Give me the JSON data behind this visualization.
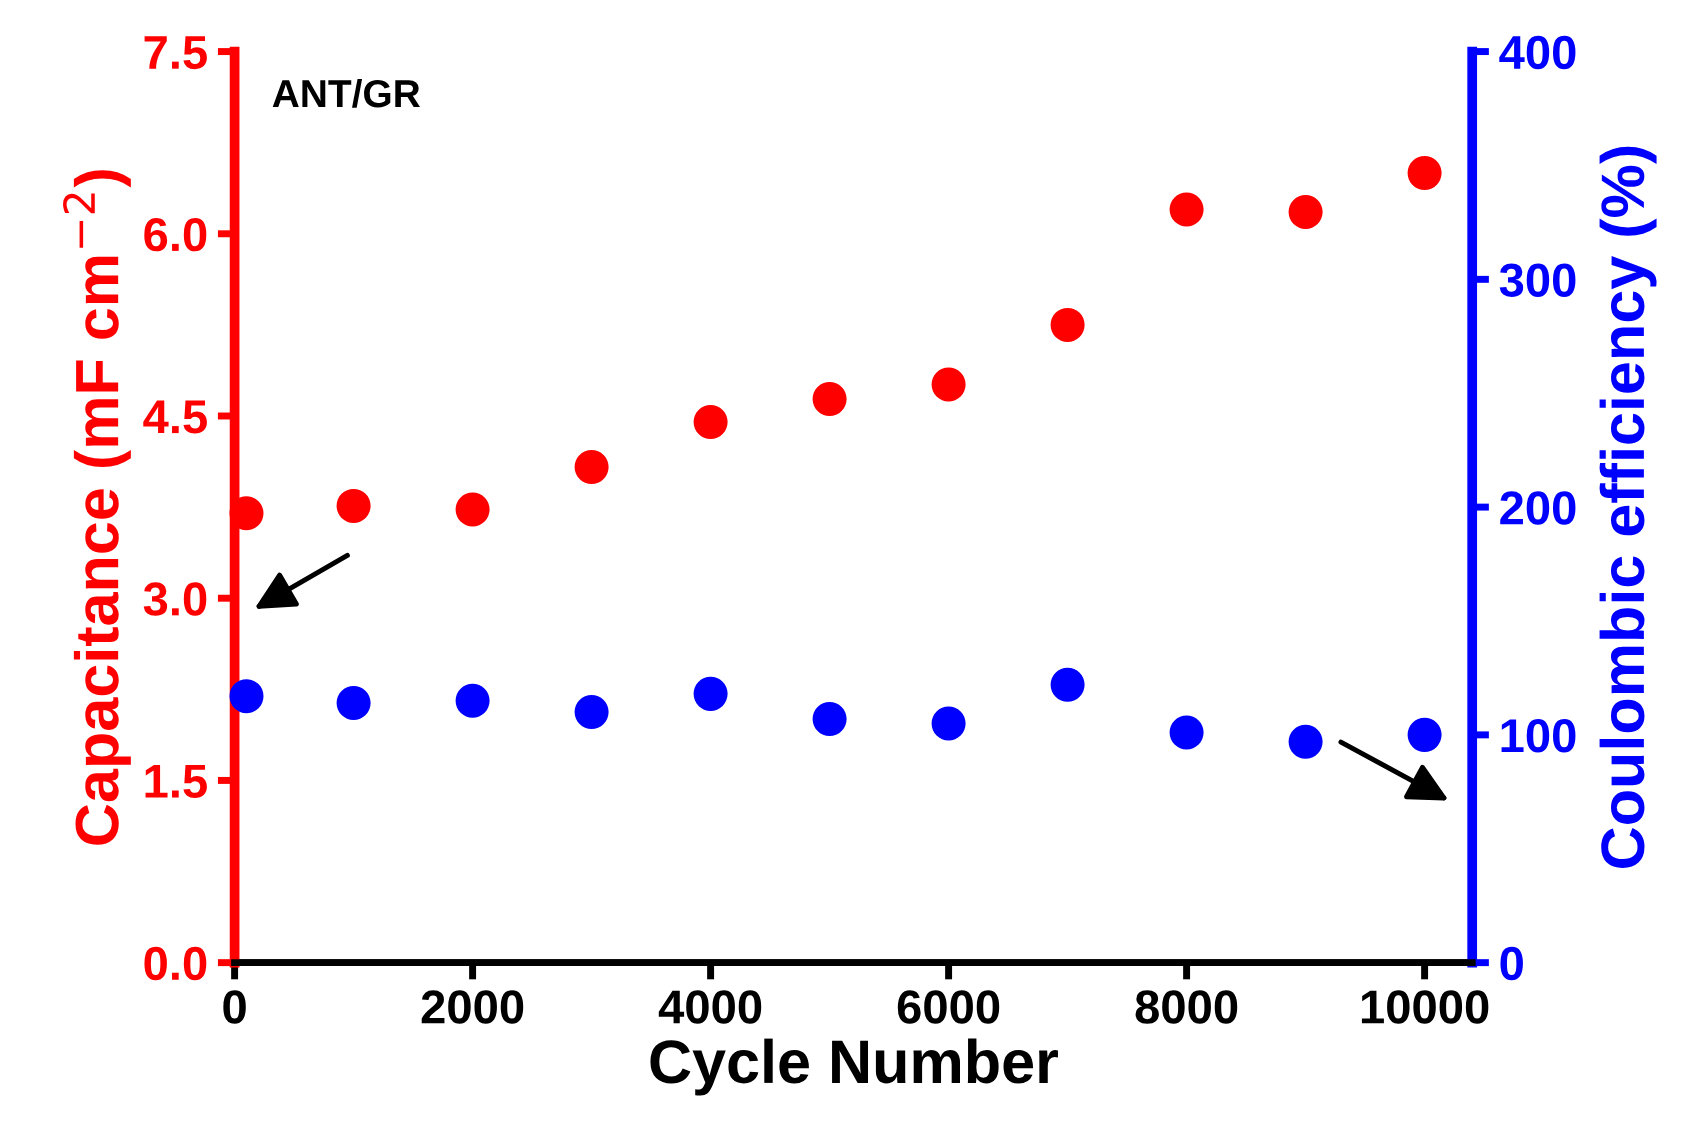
{
  "chart_data": {
    "type": "scatter",
    "xlabel": "Cycle Number",
    "ylabel": "Capacitance (mF cm$^{−2}$)",
    "y2label": "Coulombic efficiency (%)",
    "annotations": [
      "ANT/GR"
    ],
    "x": [
      100,
      1000,
      2000,
      3000,
      4000,
      5000,
      6000,
      7000,
      8000,
      9000,
      10000
    ],
    "series": [
      {
        "color": "#ff0000",
        "values": [
          3.7,
          3.76,
          3.73,
          4.08,
          4.45,
          4.64,
          4.76,
          5.25,
          6.2,
          6.18,
          6.5
        ]
      },
      {
        "color": "#0000ff",
        "axis": "y2",
        "values": [
          117,
          114,
          115,
          110,
          118,
          107,
          105,
          122,
          101,
          97,
          100
        ]
      }
    ],
    "marker": "circle",
    "grid": false,
    "legend": false,
    "xlim": [
      0,
      10400
    ],
    "xticks": [
      0,
      2000,
      4000,
      6000,
      8000,
      10000
    ],
    "ylim": [
      0,
      7.5
    ],
    "yticks": [
      {
        "value": 0,
        "label": "0.0"
      },
      {
        "value": 1.5,
        "label": "1.5"
      },
      {
        "value": 3,
        "label": "3.0"
      },
      {
        "value": 4.5,
        "label": "4.5"
      },
      {
        "value": 6,
        "label": "6.0"
      },
      {
        "value": 7.5,
        "label": "7.5"
      }
    ],
    "y2lim": [
      0,
      400
    ],
    "y2ticks": [
      0,
      100,
      200,
      300,
      400
    ]
  }
}
